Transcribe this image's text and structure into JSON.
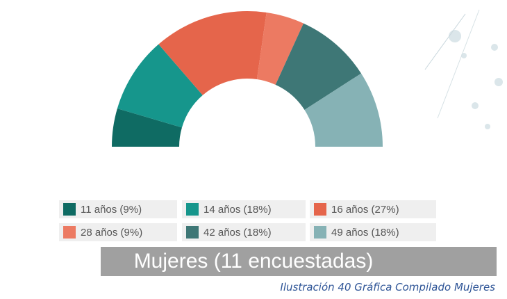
{
  "chart_data": {
    "type": "pie",
    "categories": [
      "11 años (9%)",
      "14 años (18%)",
      "16 años (27%)",
      "28 años (9%)",
      "42 años (18%)",
      "49 años (18%)"
    ],
    "values": [
      9,
      18,
      27,
      9,
      18,
      18
    ],
    "colors": [
      "#0f6b63",
      "#16968c",
      "#e5654b",
      "#ec7a62",
      "#3e7776",
      "#86b2b5"
    ],
    "title": "Mujeres (11 encuestadas)"
  },
  "caption": "Ilustración 40 Gráfica Compilado Mujeres"
}
